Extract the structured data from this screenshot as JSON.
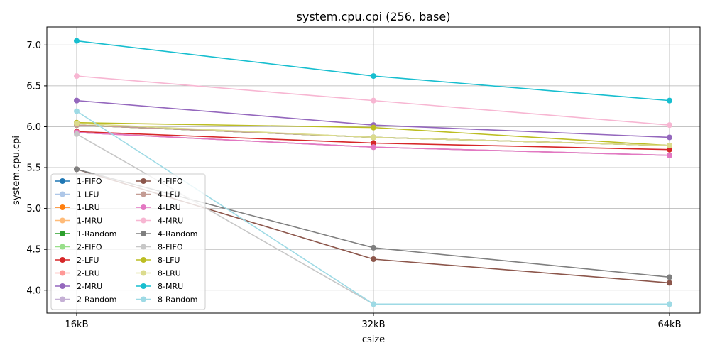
{
  "chart_data": {
    "type": "line",
    "title": "system.cpu.cpi (256, base)",
    "xlabel": "csize",
    "ylabel": "system.cpu.cpi",
    "categories": [
      "16kB",
      "32kB",
      "64kB"
    ],
    "ylim": [
      3.72,
      7.22
    ],
    "yticks": [
      "4.0",
      "4.5",
      "5.0",
      "5.5",
      "6.0",
      "6.5",
      "7.0"
    ],
    "grid": true,
    "legend_position": "lower-left",
    "legend_columns": 2,
    "series": [
      {
        "name": "1-FIFO",
        "color": "#1f77b4",
        "values": [
          6.02,
          5.87,
          5.77
        ]
      },
      {
        "name": "1-LFU",
        "color": "#aec7e8",
        "values": [
          5.93,
          5.75,
          5.65
        ]
      },
      {
        "name": "1-LRU",
        "color": "#ff7f0e",
        "values": [
          6.02,
          5.87,
          5.77
        ]
      },
      {
        "name": "1-MRU",
        "color": "#ffbb78",
        "values": [
          6.02,
          5.87,
          5.77
        ]
      },
      {
        "name": "1-Random",
        "color": "#2ca02c",
        "values": [
          6.02,
          5.87,
          5.77
        ]
      },
      {
        "name": "2-FIFO",
        "color": "#98df8a",
        "values": [
          6.02,
          5.87,
          5.77
        ]
      },
      {
        "name": "2-LFU",
        "color": "#d62728",
        "values": [
          5.94,
          5.8,
          5.72
        ]
      },
      {
        "name": "2-LRU",
        "color": "#ff9896",
        "values": [
          5.93,
          5.75,
          5.65
        ]
      },
      {
        "name": "2-MRU",
        "color": "#9467bd",
        "values": [
          6.32,
          6.02,
          5.87
        ]
      },
      {
        "name": "2-Random",
        "color": "#c5b0d5",
        "values": [
          5.93,
          5.75,
          5.65
        ]
      },
      {
        "name": "4-FIFO",
        "color": "#8c564b",
        "values": [
          5.48,
          4.38,
          4.09
        ]
      },
      {
        "name": "4-LFU",
        "color": "#c49c94",
        "values": [
          6.02,
          5.87,
          5.77
        ]
      },
      {
        "name": "4-LRU",
        "color": "#e377c2",
        "values": [
          5.93,
          5.75,
          5.65
        ]
      },
      {
        "name": "4-MRU",
        "color": "#f7b6d2",
        "values": [
          6.62,
          6.32,
          6.02
        ]
      },
      {
        "name": "4-Random",
        "color": "#7f7f7f",
        "values": [
          5.48,
          4.52,
          4.16
        ]
      },
      {
        "name": "8-FIFO",
        "color": "#c7c7c7",
        "values": [
          5.91,
          3.83,
          3.83
        ]
      },
      {
        "name": "8-LFU",
        "color": "#bcbd22",
        "values": [
          6.05,
          5.99,
          5.77
        ]
      },
      {
        "name": "8-LRU",
        "color": "#dbdb8d",
        "values": [
          6.04,
          5.87,
          5.77
        ]
      },
      {
        "name": "8-MRU",
        "color": "#17becf",
        "values": [
          7.05,
          6.62,
          6.32
        ]
      },
      {
        "name": "8-Random",
        "color": "#9edae5",
        "values": [
          6.19,
          3.83,
          3.83
        ]
      }
    ]
  }
}
